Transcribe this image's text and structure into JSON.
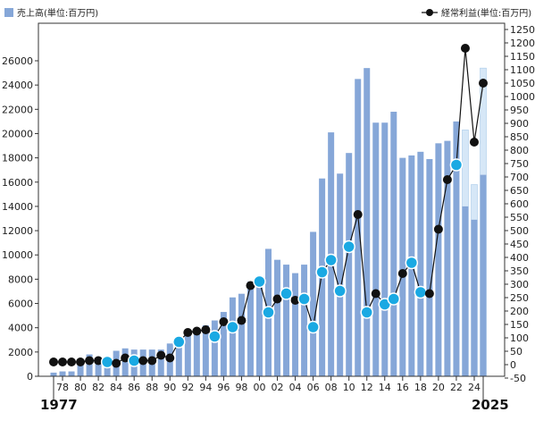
{
  "chart_data": {
    "type": "bar",
    "legend": {
      "bars": "売上高(単位:百万円)",
      "line": "経常利益(単位:百万円)"
    },
    "x": [
      1977,
      1978,
      1979,
      1980,
      1981,
      1982,
      1983,
      1984,
      1985,
      1986,
      1987,
      1988,
      1989,
      1990,
      1991,
      1992,
      1993,
      1994,
      1995,
      1996,
      1997,
      1998,
      1999,
      2000,
      2001,
      2002,
      2003,
      2004,
      2005,
      2006,
      2007,
      2008,
      2009,
      2010,
      2011,
      2012,
      2013,
      2014,
      2015,
      2016,
      2017,
      2018,
      2019,
      2020,
      2021,
      2022,
      2023,
      2024,
      2025
    ],
    "x_tick_labels": [
      "78",
      "80",
      "82",
      "84",
      "86",
      "88",
      "90",
      "92",
      "94",
      "96",
      "98",
      "00",
      "02",
      "04",
      "06",
      "08",
      "10",
      "12",
      "14",
      "16",
      "18",
      "20",
      "22",
      "24"
    ],
    "x_tick_years": [
      1978,
      1980,
      1982,
      1984,
      1986,
      1988,
      1990,
      1992,
      1994,
      1996,
      1998,
      2000,
      2002,
      2004,
      2006,
      2008,
      2010,
      2012,
      2014,
      2016,
      2018,
      2020,
      2022,
      2024
    ],
    "x_start_label": "1977",
    "x_end_label": "2025",
    "series": [
      {
        "name": "売上高(単位:百万円)",
        "axis": "left",
        "values": [
          300,
          400,
          400,
          1200,
          1800,
          1300,
          1400,
          2100,
          2300,
          2200,
          2200,
          2200,
          2200,
          2700,
          2900,
          3400,
          3600,
          4200,
          4600,
          5300,
          6500,
          6800,
          7800,
          8200,
          10500,
          9600,
          9200,
          8500,
          9200,
          11900,
          16300,
          20100,
          16700,
          18400,
          24500,
          25400,
          20900,
          20900,
          21800,
          18000,
          18200,
          18500,
          17900,
          19200,
          19400,
          21000,
          20300,
          15800,
          25400
        ],
        "estimate_from_index": 46,
        "estimate_solid_values": [
          14000,
          12900,
          16600
        ]
      },
      {
        "name": "経常利益(単位:百万円)",
        "axis": "right",
        "values": [
          10,
          10,
          10,
          10,
          15,
          15,
          10,
          5,
          25,
          15,
          15,
          15,
          35,
          25,
          85,
          120,
          125,
          130,
          105,
          160,
          140,
          165,
          295,
          310,
          195,
          245,
          265,
          240,
          245,
          140,
          345,
          390,
          275,
          440,
          560,
          195,
          265,
          225,
          245,
          340,
          380,
          270,
          265,
          505,
          690,
          745,
          1180,
          830,
          1050
        ],
        "highlighted_indices": [
          6,
          9,
          14,
          18,
          20,
          23,
          24,
          26,
          28,
          29,
          30,
          31,
          32,
          33,
          35,
          37,
          38,
          40,
          41,
          45
        ]
      }
    ],
    "left_axis": {
      "min": 0,
      "max": 26000,
      "step": 2000
    },
    "right_axis": {
      "min": -50,
      "max": 1250,
      "step": 50
    },
    "colors": {
      "bar": "#86A7D8",
      "bar_estimate": "#D6E7F7",
      "line": "#111111",
      "marker_black": "#111111",
      "marker_highlight": "#1AA9E3"
    }
  }
}
